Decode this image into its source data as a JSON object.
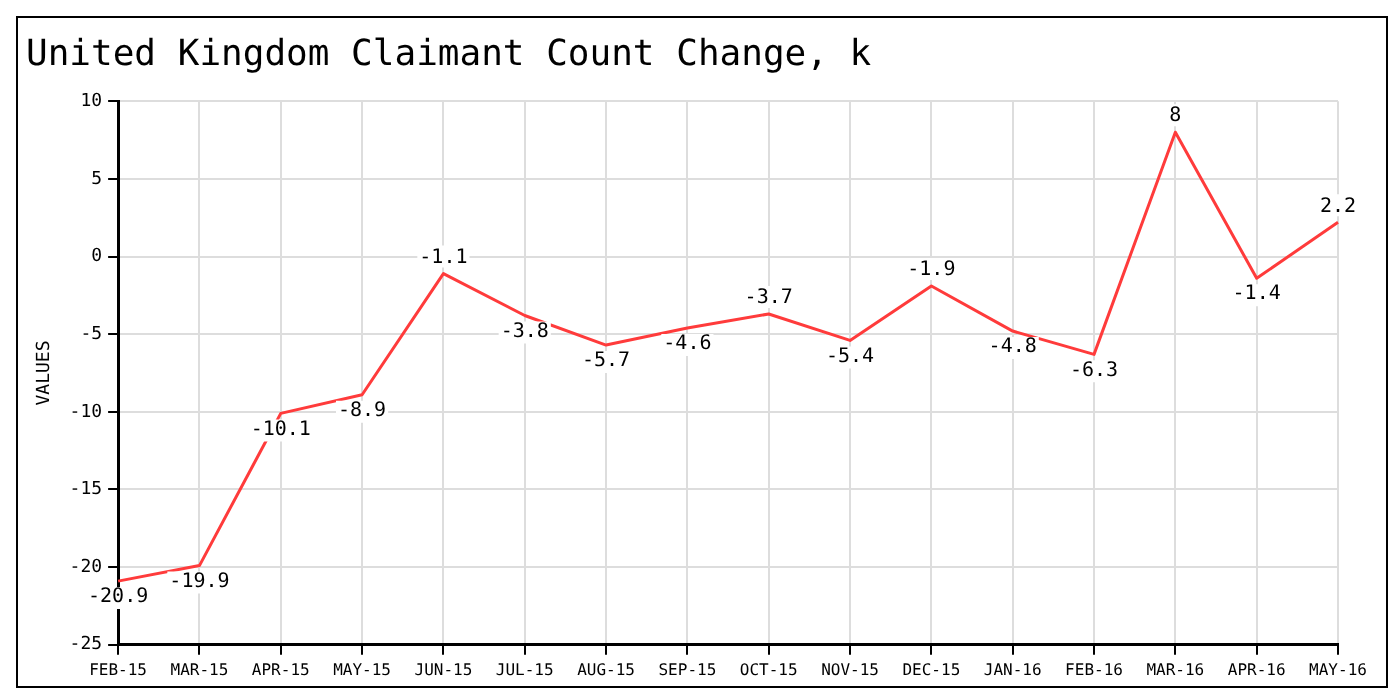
{
  "chart_data": {
    "type": "line",
    "title": "United Kingdom Claimant Count Change, k",
    "ylabel": "VALUES",
    "categories": [
      "FEB-15",
      "MAR-15",
      "APR-15",
      "MAY-15",
      "JUN-15",
      "JUL-15",
      "AUG-15",
      "SEP-15",
      "OCT-15",
      "NOV-15",
      "DEC-15",
      "JAN-16",
      "FEB-16",
      "MAR-16",
      "APR-16",
      "MAY-16"
    ],
    "series": [
      {
        "color": "#ff3b3b",
        "values": [
          -20.9,
          -19.9,
          -10.1,
          -8.9,
          -1.1,
          -3.8,
          -5.7,
          -4.6,
          -3.7,
          -5.4,
          -1.9,
          -4.8,
          -6.3,
          8,
          -1.4,
          2.2
        ]
      }
    ],
    "ylim": [
      -25,
      10
    ],
    "yticks": [
      -25,
      -20,
      -15,
      -10,
      -5,
      0,
      5,
      10
    ],
    "grid": true,
    "data_labels": true,
    "legend": false,
    "marker": "none",
    "line_style": "solid"
  }
}
